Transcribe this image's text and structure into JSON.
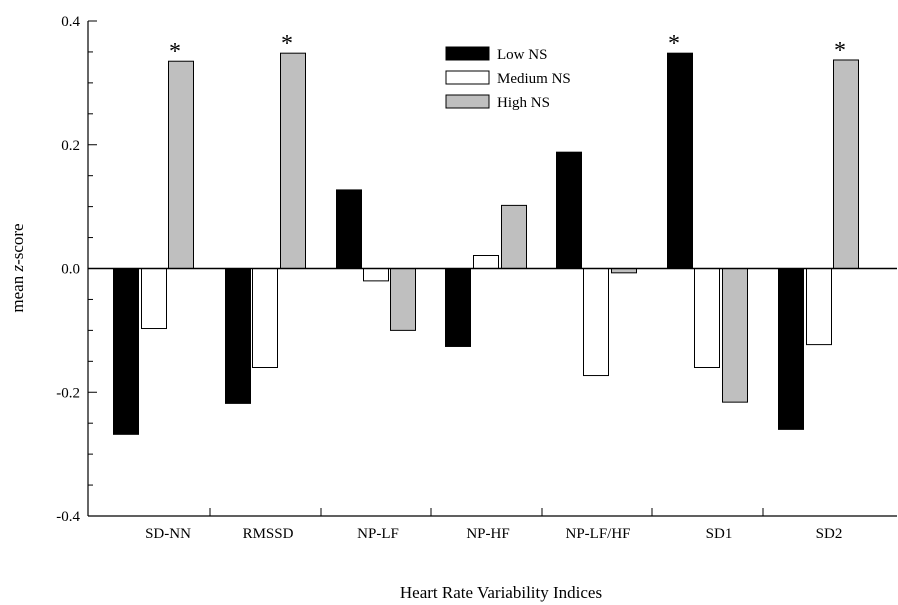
{
  "chart_data": {
    "type": "bar",
    "title": "",
    "xlabel": "Heart Rate Variability Indices",
    "ylabel_prefix": "mean ",
    "ylabel_italic": "z",
    "ylabel_suffix": "-score",
    "ylim": [
      -0.4,
      0.4
    ],
    "yticks": [
      "-0.4",
      "-0.2",
      "0.0",
      "0.2",
      "0.4"
    ],
    "ytick_values": [
      -0.4,
      -0.2,
      0.0,
      0.2,
      0.4
    ],
    "categories": [
      "SD-NN",
      "RMSSD",
      "NP-LF",
      "NP-HF",
      "NP-LF/HF",
      "SD1",
      "SD2"
    ],
    "series": [
      {
        "name": "Low NS",
        "color": "#000000",
        "values": [
          -0.268,
          -0.218,
          0.127,
          -0.126,
          0.188,
          0.348,
          -0.26
        ]
      },
      {
        "name": "Medium NS",
        "color": "#ffffff",
        "values": [
          -0.097,
          -0.16,
          -0.02,
          0.021,
          -0.173,
          -0.16,
          -0.123
        ]
      },
      {
        "name": "High NS",
        "color": "#bfbfbf",
        "values": [
          0.335,
          0.348,
          -0.1,
          0.102,
          -0.007,
          -0.216,
          0.337
        ]
      }
    ],
    "significance": [
      {
        "category": "SD-NN",
        "series": "High NS",
        "symbol": "*"
      },
      {
        "category": "RMSSD",
        "series": "High NS",
        "symbol": "*"
      },
      {
        "category": "SD1",
        "series": "Low NS",
        "symbol": "*"
      },
      {
        "category": "SD2",
        "series": "High NS",
        "symbol": "*"
      }
    ],
    "legend_position": "top-center",
    "grid": false
  }
}
